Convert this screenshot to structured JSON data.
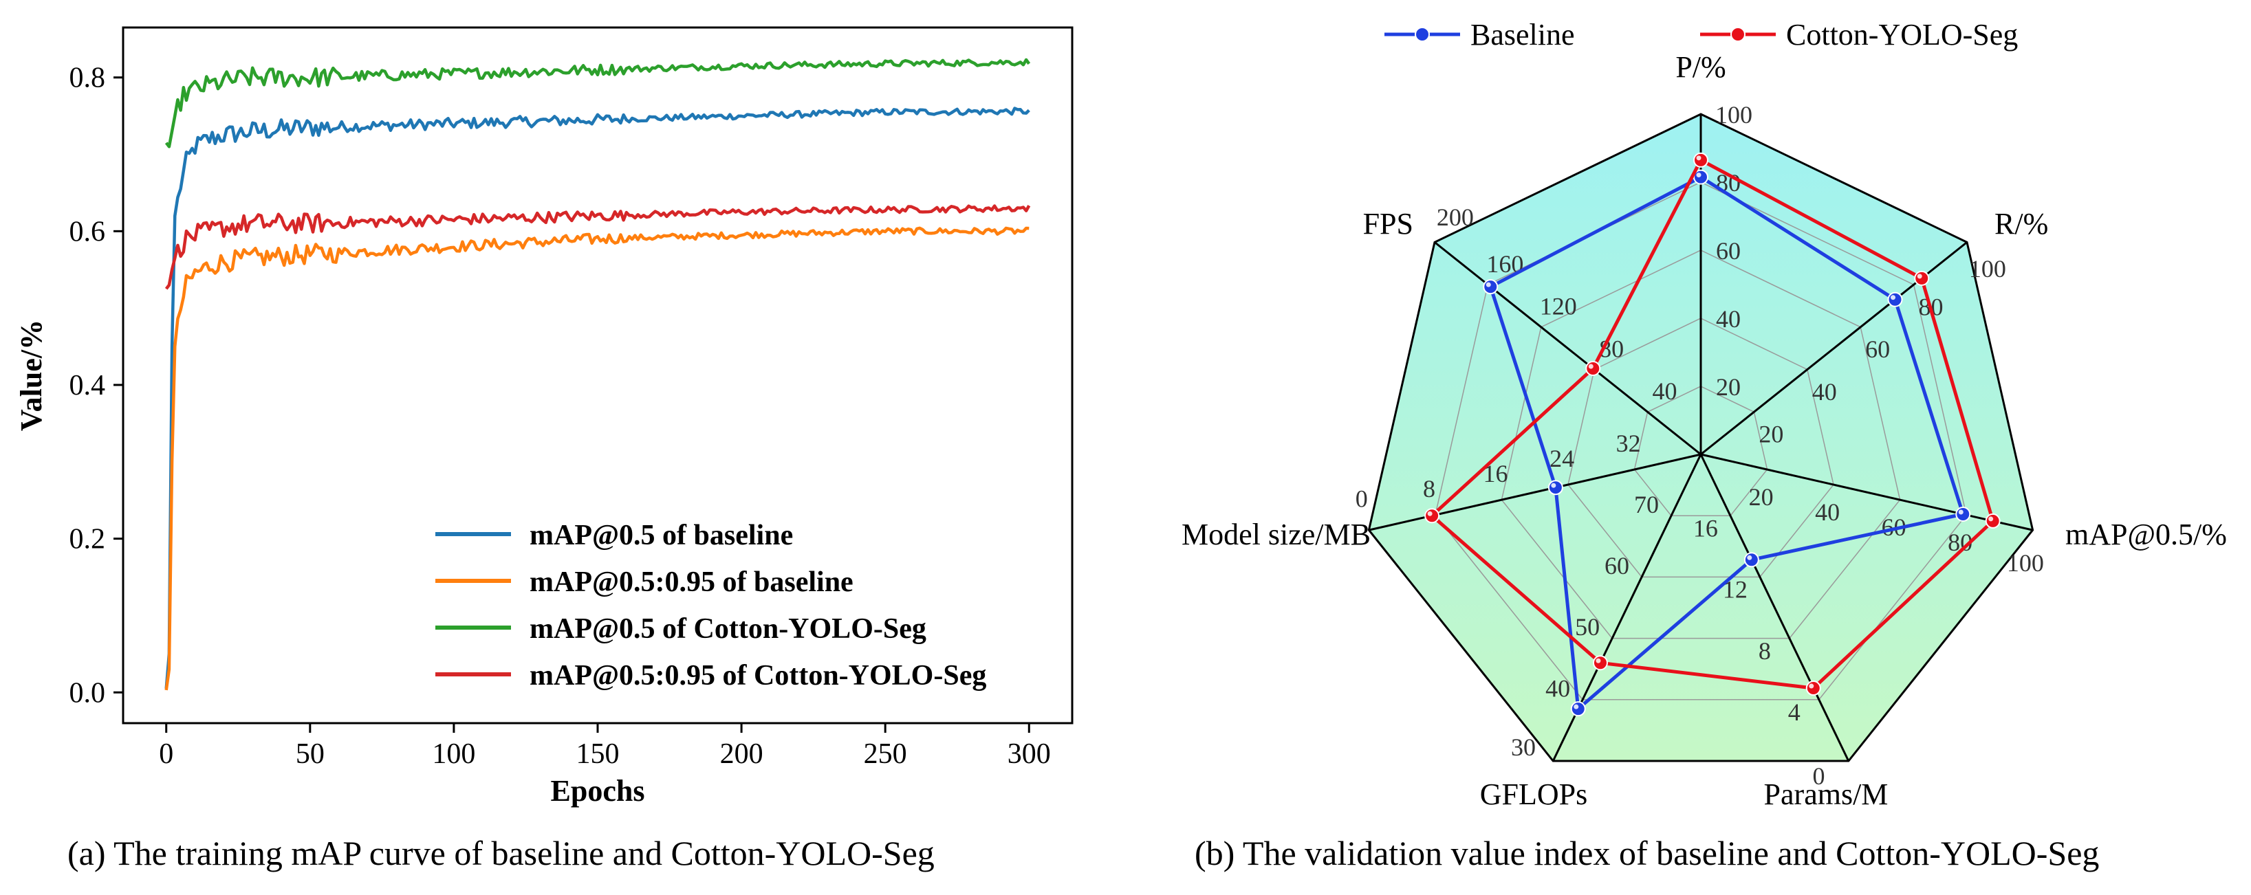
{
  "captions": {
    "a": "(a) The training mAP curve of baseline and Cotton-YOLO-Seg",
    "b": "(b) The validation value index of baseline and Cotton-YOLO-Seg"
  },
  "chart_data": [
    {
      "type": "line",
      "title": "",
      "xlabel": "Epochs",
      "ylabel": "Value/%",
      "xlim": [
        -15,
        315
      ],
      "ylim": [
        -0.04,
        0.865
      ],
      "xticks": [
        0,
        50,
        100,
        150,
        200,
        250,
        300
      ],
      "yticks": [
        0.0,
        0.2,
        0.4,
        0.6,
        0.8
      ],
      "legend_position": "bottom-right",
      "series": [
        {
          "name": "mAP@0.5 of baseline",
          "color": "#1f77b4",
          "x": [
            0,
            1,
            2,
            3,
            5,
            7,
            10,
            15,
            20,
            30,
            50,
            100,
            150,
            200,
            250,
            300
          ],
          "y": [
            0.005,
            0.05,
            0.45,
            0.62,
            0.66,
            0.69,
            0.71,
            0.72,
            0.725,
            0.73,
            0.735,
            0.74,
            0.745,
            0.75,
            0.755,
            0.756
          ]
        },
        {
          "name": "mAP@0.5:0.95 of baseline",
          "color": "#ff7f0e",
          "x": [
            0,
            1,
            2,
            3,
            5,
            7,
            10,
            15,
            20,
            30,
            50,
            100,
            150,
            200,
            250,
            300
          ],
          "y": [
            0.003,
            0.03,
            0.3,
            0.45,
            0.5,
            0.53,
            0.545,
            0.555,
            0.56,
            0.565,
            0.57,
            0.58,
            0.59,
            0.595,
            0.6,
            0.6
          ]
        },
        {
          "name": "mAP@0.5 of Cotton-YOLO-Seg",
          "color": "#2ca02c",
          "x": [
            0,
            1,
            2,
            3,
            5,
            7,
            10,
            15,
            20,
            30,
            50,
            100,
            150,
            200,
            250,
            300
          ],
          "y": [
            0.715,
            0.71,
            0.73,
            0.75,
            0.77,
            0.78,
            0.785,
            0.79,
            0.795,
            0.8,
            0.8,
            0.805,
            0.81,
            0.815,
            0.818,
            0.82
          ]
        },
        {
          "name": "mAP@0.5:0.95 of Cotton-YOLO-Seg",
          "color": "#d62728",
          "x": [
            0,
            1,
            2,
            3,
            5,
            7,
            10,
            15,
            20,
            30,
            50,
            100,
            150,
            200,
            250,
            300
          ],
          "y": [
            0.525,
            0.53,
            0.55,
            0.565,
            0.58,
            0.59,
            0.595,
            0.6,
            0.605,
            0.61,
            0.61,
            0.615,
            0.62,
            0.625,
            0.628,
            0.63
          ]
        }
      ]
    },
    {
      "type": "radar",
      "title": "",
      "legend_position": "top",
      "axes": [
        {
          "name": "P/%",
          "min": 0,
          "max": 100,
          "ticks": [
            "20",
            "40",
            "60",
            "80"
          ],
          "max_label": "100",
          "min_label": ""
        },
        {
          "name": "R/%",
          "min": 0,
          "max": 100,
          "ticks": [
            "20",
            "40",
            "60",
            "80"
          ],
          "max_label": "100",
          "min_label": ""
        },
        {
          "name": "mAP@0.5/%",
          "min": 0,
          "max": 100,
          "ticks": [
            "20",
            "40",
            "60",
            "80"
          ],
          "max_label": "100",
          "min_label": ""
        },
        {
          "name": "Params/M",
          "min": 16,
          "max": 0,
          "ticks": [
            "16",
            "12",
            "8",
            "4"
          ],
          "max_label": "",
          "min_label": "0"
        },
        {
          "name": "GFLOPs",
          "min": 80,
          "max": 30,
          "ticks": [
            "70",
            "60",
            "50",
            "40"
          ],
          "max_label": "",
          "min_label": "30"
        },
        {
          "name": "Model size/MB",
          "min": 40,
          "max": 0,
          "ticks": [
            "32",
            "24",
            "16",
            "8"
          ],
          "max_label": "",
          "min_label": "0"
        },
        {
          "name": "FPS",
          "min": 0,
          "max": 200,
          "ticks": [
            "40",
            "80",
            "120",
            "160"
          ],
          "max_label": "200",
          "min_label": ""
        }
      ],
      "series": [
        {
          "name": "Baseline",
          "color": "#1f3fe0",
          "values": [
            81.5,
            73,
            79,
            10.5,
            38.5,
            22.5,
            158
          ]
        },
        {
          "name": "Cotton-YOLO-Seg",
          "color": "#e8101a",
          "values": [
            86.5,
            83,
            88,
            3.8,
            46,
            7.6,
            81
          ]
        }
      ]
    }
  ]
}
